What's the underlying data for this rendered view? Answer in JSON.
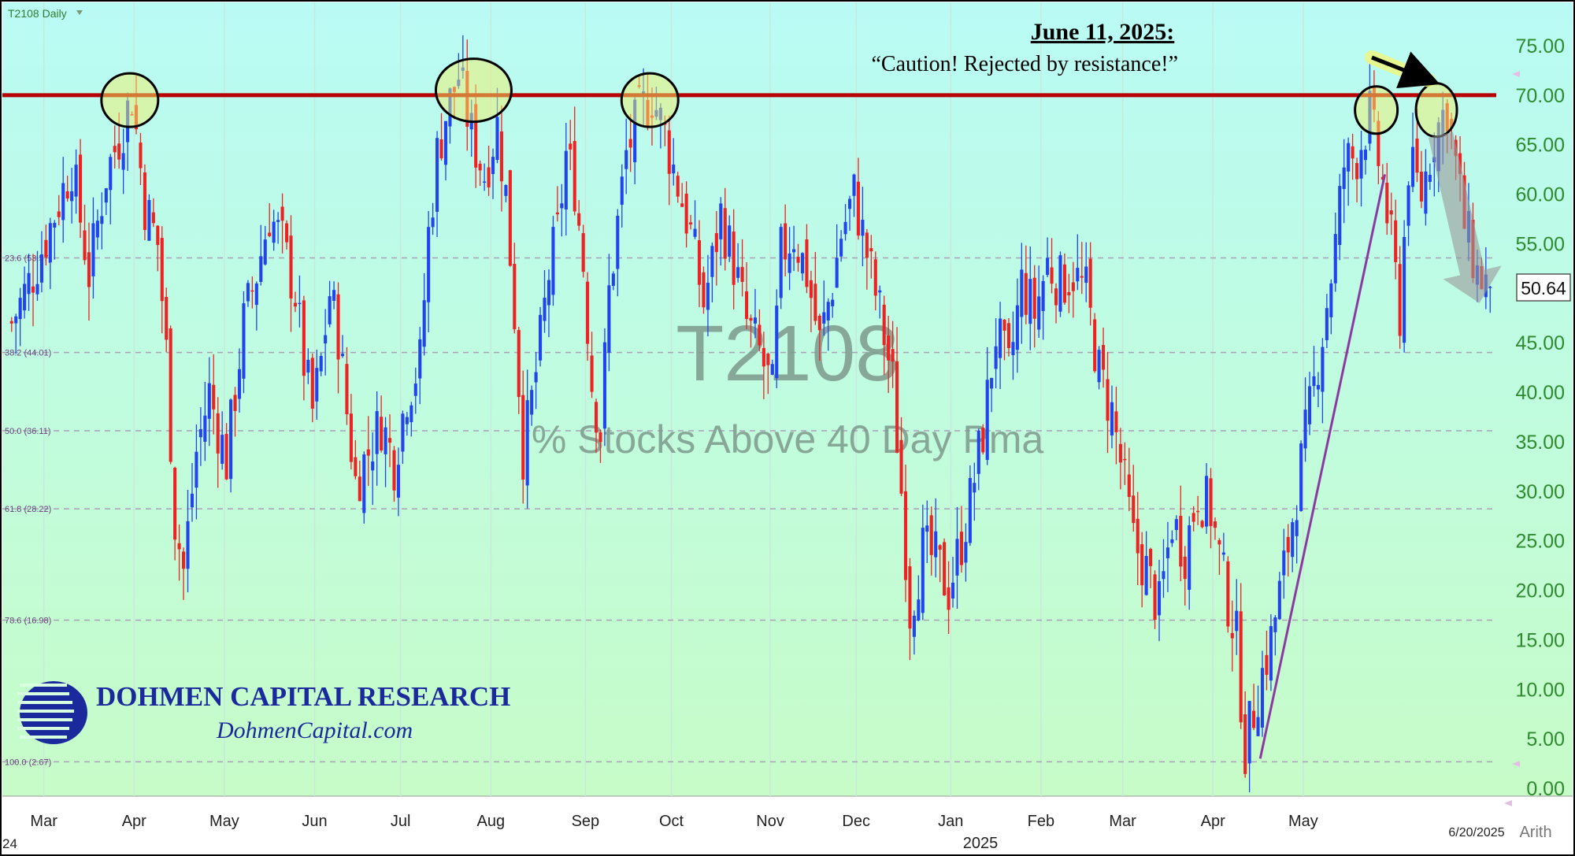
{
  "chart_data": {
    "type": "candlestick",
    "symbol_label": "T2108 Daily",
    "watermark_title": "T2108",
    "watermark_subtitle": "% Stocks Above 40 Day Pma",
    "last_value": "50.64",
    "date_label": "6/20/2025",
    "scale_label": "Arith",
    "year_label": "2025",
    "start_year_label": "24",
    "ylim": [
      0,
      78
    ],
    "y_ticks": [
      "75.00",
      "70.00",
      "65.00",
      "60.00",
      "55.00",
      "50.00",
      "45.00",
      "40.00",
      "35.00",
      "30.00",
      "25.00",
      "20.00",
      "15.00",
      "10.00",
      "5.00",
      "0.00"
    ],
    "x_ticks": [
      {
        "label": "Mar",
        "day": 8
      },
      {
        "label": "Apr",
        "day": 29
      },
      {
        "label": "May",
        "day": 50
      },
      {
        "label": "Jun",
        "day": 71
      },
      {
        "label": "Jul",
        "day": 91
      },
      {
        "label": "Aug",
        "day": 112
      },
      {
        "label": "Sep",
        "day": 134
      },
      {
        "label": "Oct",
        "day": 154
      },
      {
        "label": "Nov",
        "day": 177
      },
      {
        "label": "Dec",
        "day": 197
      },
      {
        "label": "Jan",
        "day": 219
      },
      {
        "label": "Feb",
        "day": 240
      },
      {
        "label": "Mar",
        "day": 259
      },
      {
        "label": "Apr",
        "day": 280
      },
      {
        "label": "May",
        "day": 301
      }
    ],
    "total_days": 345,
    "resistance_level": 70,
    "fib_levels": [
      {
        "label": "23.6 (53.57)",
        "value": 53.57
      },
      {
        "label": "38.2 (44.01)",
        "value": 44.01
      },
      {
        "label": "50.0 (36.11)",
        "value": 36.11
      },
      {
        "label": "61.8 (28.22)",
        "value": 28.22
      },
      {
        "label": "78.6 (16.98)",
        "value": 16.98
      },
      {
        "label": "100.0 (2.67)",
        "value": 2.67
      }
    ],
    "trendline": {
      "from": {
        "day": 291,
        "value": 3
      },
      "to": {
        "day": 320,
        "value": 62
      }
    },
    "highlight_circles": [
      {
        "day": 28,
        "value": 69.5
      },
      {
        "day": 108,
        "value": 70.5
      },
      {
        "day": 149,
        "value": 69.5
      },
      {
        "day": 318,
        "value": 68.5
      },
      {
        "day": 332,
        "value": 68.5
      }
    ],
    "arrow_down": {
      "from": {
        "day": 333,
        "value": 66
      },
      "to": {
        "day": 342,
        "value": 49
      }
    },
    "annotation": {
      "title": "June 11, 2025:",
      "quote": "“Caution! Rejected by resistance!”"
    },
    "brand": {
      "name": "DOHMEN CAPITAL RESEARCH",
      "url": "DohmenCapital.com"
    },
    "anchors": [
      [
        0,
        47
      ],
      [
        5,
        52
      ],
      [
        10,
        58
      ],
      [
        14,
        63
      ],
      [
        18,
        52
      ],
      [
        22,
        62
      ],
      [
        26,
        67
      ],
      [
        28,
        70
      ],
      [
        31,
        59
      ],
      [
        34,
        55
      ],
      [
        36,
        44
      ],
      [
        38,
        27
      ],
      [
        40,
        22
      ],
      [
        43,
        34
      ],
      [
        46,
        40
      ],
      [
        50,
        33
      ],
      [
        54,
        47
      ],
      [
        57,
        52
      ],
      [
        60,
        58
      ],
      [
        63,
        55
      ],
      [
        66,
        50
      ],
      [
        68,
        43
      ],
      [
        70,
        38
      ],
      [
        72,
        43
      ],
      [
        74,
        50
      ],
      [
        76,
        46
      ],
      [
        78,
        38
      ],
      [
        80,
        31
      ],
      [
        83,
        34
      ],
      [
        86,
        37
      ],
      [
        89,
        33
      ],
      [
        92,
        40
      ],
      [
        95,
        43
      ],
      [
        97,
        56
      ],
      [
        99,
        64
      ],
      [
        101,
        68
      ],
      [
        104,
        72
      ],
      [
        107,
        66
      ],
      [
        110,
        62
      ],
      [
        113,
        67
      ],
      [
        115,
        60
      ],
      [
        117,
        48
      ],
      [
        119,
        34
      ],
      [
        121,
        39
      ],
      [
        123,
        45
      ],
      [
        125,
        52
      ],
      [
        127,
        56
      ],
      [
        129,
        64
      ],
      [
        131,
        61
      ],
      [
        133,
        53
      ],
      [
        135,
        41
      ],
      [
        137,
        36
      ],
      [
        139,
        50
      ],
      [
        141,
        57
      ],
      [
        143,
        64
      ],
      [
        146,
        68
      ],
      [
        149,
        70
      ],
      [
        152,
        66
      ],
      [
        155,
        61
      ],
      [
        158,
        56
      ],
      [
        161,
        49
      ],
      [
        163,
        53
      ],
      [
        165,
        58
      ],
      [
        168,
        53
      ],
      [
        171,
        47
      ],
      [
        174,
        44
      ],
      [
        177,
        40
      ],
      [
        179,
        54
      ],
      [
        182,
        56
      ],
      [
        185,
        52
      ],
      [
        188,
        45
      ],
      [
        191,
        51
      ],
      [
        193,
        56
      ],
      [
        196,
        60
      ],
      [
        199,
        54
      ],
      [
        202,
        48
      ],
      [
        205,
        41
      ],
      [
        207,
        30
      ],
      [
        209,
        18
      ],
      [
        212,
        24
      ],
      [
        215,
        23
      ],
      [
        218,
        20
      ],
      [
        221,
        25
      ],
      [
        223,
        29
      ],
      [
        226,
        36
      ],
      [
        229,
        46
      ],
      [
        232,
        42
      ],
      [
        235,
        51
      ],
      [
        238,
        48
      ],
      [
        241,
        53
      ],
      [
        244,
        51
      ],
      [
        247,
        52
      ],
      [
        250,
        50
      ],
      [
        253,
        42
      ],
      [
        256,
        38
      ],
      [
        258,
        33
      ],
      [
        261,
        25
      ],
      [
        264,
        22
      ],
      [
        267,
        18
      ],
      [
        270,
        27
      ],
      [
        273,
        24
      ],
      [
        276,
        30
      ],
      [
        279,
        28
      ],
      [
        282,
        21
      ],
      [
        285,
        15
      ],
      [
        287,
        4
      ],
      [
        290,
        10
      ],
      [
        293,
        15
      ],
      [
        296,
        22
      ],
      [
        299,
        30
      ],
      [
        302,
        38
      ],
      [
        305,
        46
      ],
      [
        308,
        55
      ],
      [
        310,
        63
      ],
      [
        313,
        64
      ],
      [
        316,
        68
      ],
      [
        319,
        61
      ],
      [
        321,
        55
      ],
      [
        323,
        48
      ],
      [
        325,
        63
      ],
      [
        328,
        60
      ],
      [
        331,
        66
      ],
      [
        334,
        69
      ],
      [
        336,
        63
      ],
      [
        338,
        57
      ],
      [
        341,
        52
      ],
      [
        344,
        50.64
      ]
    ]
  }
}
